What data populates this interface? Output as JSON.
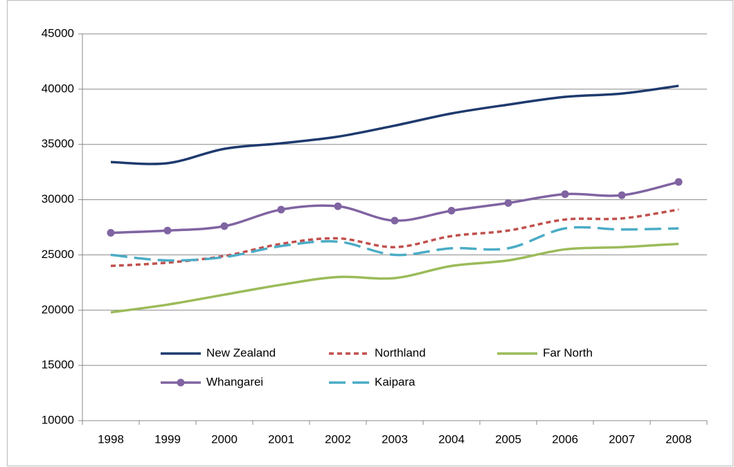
{
  "chart_data": {
    "type": "line",
    "categories": [
      "1998",
      "1999",
      "2000",
      "2001",
      "2002",
      "2003",
      "2004",
      "2005",
      "2006",
      "2007",
      "2008"
    ],
    "series": [
      {
        "name": "New Zealand",
        "color": "#1f3a6e",
        "dash": "solid",
        "values": [
          33400,
          33300,
          34600,
          35100,
          35700,
          36700,
          37800,
          38600,
          39300,
          39600,
          40300
        ]
      },
      {
        "name": "Northland",
        "color": "#c0504d",
        "dash": "short",
        "values": [
          24000,
          24300,
          24900,
          26000,
          26500,
          25700,
          26700,
          27200,
          28200,
          28300,
          29100
        ]
      },
      {
        "name": "Far North",
        "color": "#9bbb59",
        "dash": "solid",
        "values": [
          19800,
          20500,
          21400,
          22300,
          23000,
          22900,
          24000,
          24500,
          25500,
          25700,
          26000
        ]
      },
      {
        "name": "Whangarei",
        "color": "#8064a2",
        "dash": "solid",
        "marker": "circle",
        "values": [
          27000,
          27200,
          27600,
          29100,
          29400,
          28100,
          29000,
          29700,
          30500,
          30400,
          31600
        ]
      },
      {
        "name": "Kaipara",
        "color": "#4bacc6",
        "dash": "long",
        "values": [
          25000,
          24500,
          24800,
          25800,
          26200,
          25000,
          25600,
          25600,
          27400,
          27300,
          27400
        ]
      }
    ],
    "ylim": [
      10000,
      45000
    ],
    "yticks": [
      10000,
      15000,
      20000,
      25000,
      30000,
      35000,
      40000,
      45000
    ],
    "grid": true,
    "smooth": true,
    "legend": "bottom-inside"
  }
}
